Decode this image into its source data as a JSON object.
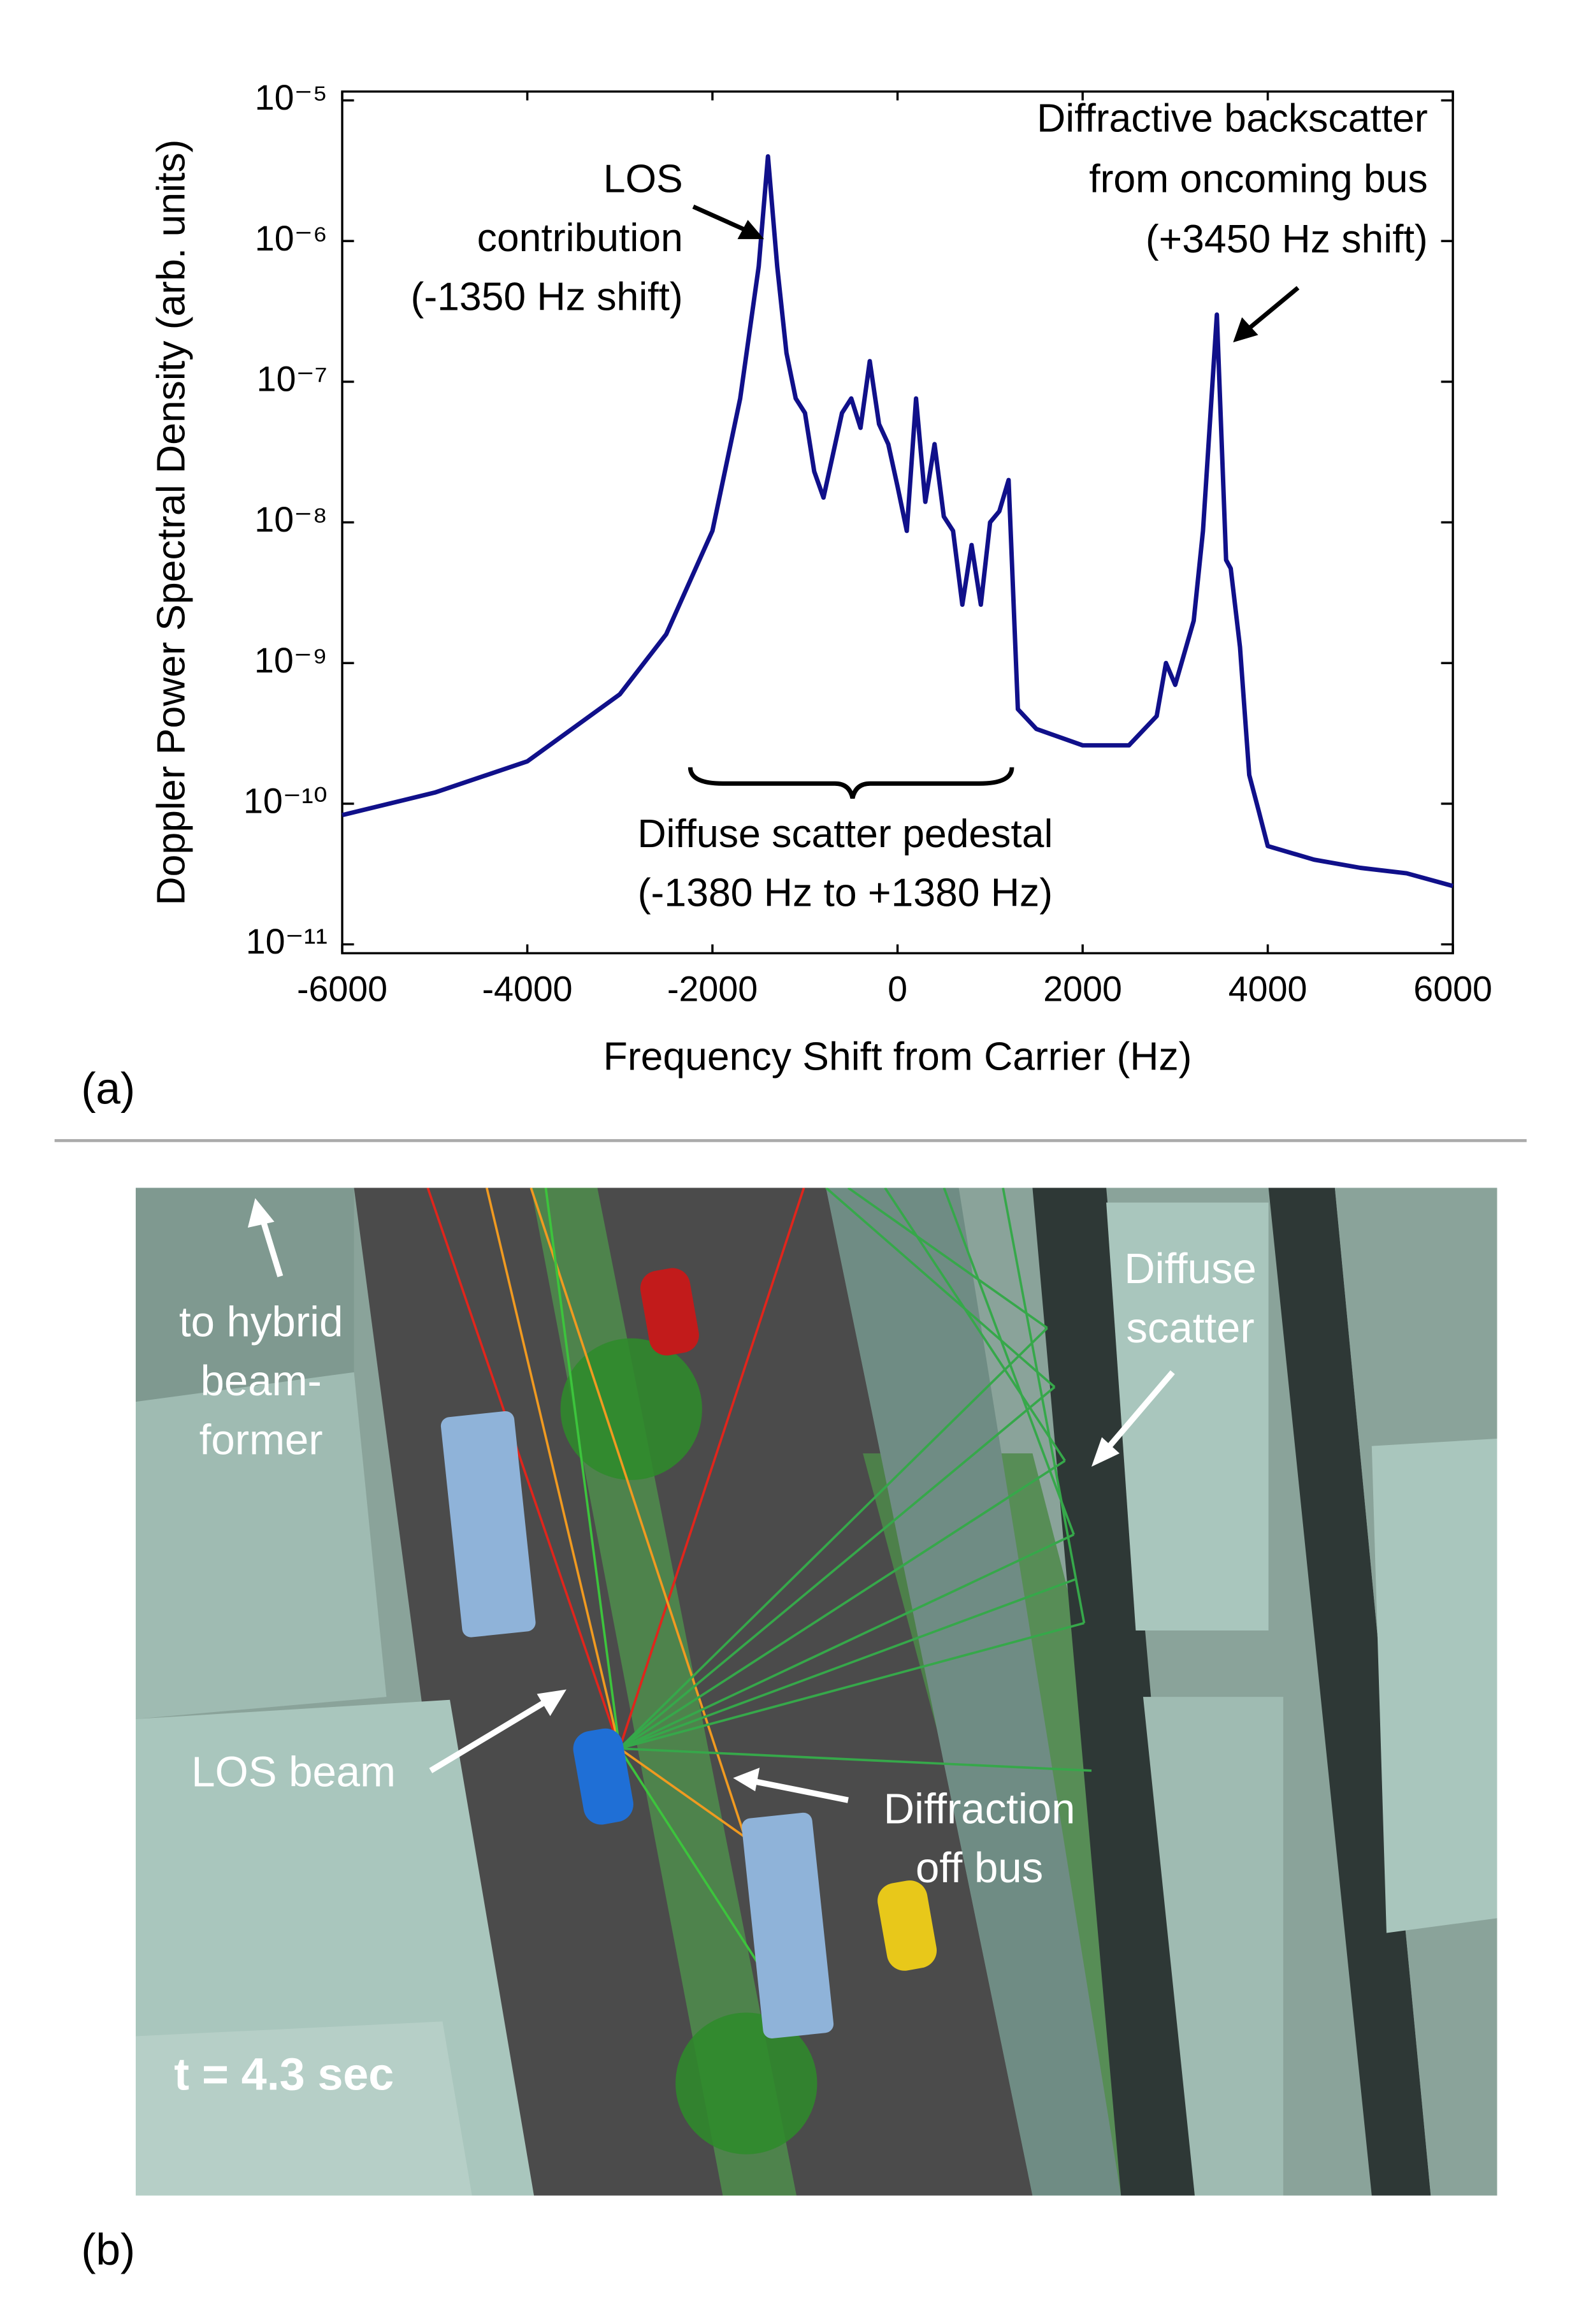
{
  "chart_data": {
    "type": "line",
    "log_y": true,
    "grid": false,
    "x_label": "Frequency Shift from Carrier (Hz)",
    "y_label": "Doppler Power Spectral Density (arb. units)",
    "xlim": [
      -6000,
      6000
    ],
    "xticks": [
      -6000,
      -4000,
      -2000,
      0,
      2000,
      4000,
      6000
    ],
    "ylim": [
      1e-11,
      1e-05
    ],
    "yticks": [
      {
        "value": 1e-11,
        "label": "10⁻¹¹"
      },
      {
        "value": 1e-10,
        "label": "10⁻¹⁰"
      },
      {
        "value": 1e-09,
        "label": "10⁻⁹"
      },
      {
        "value": 1e-08,
        "label": "10⁻⁸"
      },
      {
        "value": 1e-07,
        "label": "10⁻⁷"
      },
      {
        "value": 1e-06,
        "label": "10⁻⁶"
      },
      {
        "value": 1e-05,
        "label": "10⁻⁵"
      }
    ],
    "x": [
      -6000,
      -5000,
      -4000,
      -3000,
      -2500,
      -2000,
      -1700,
      -1500,
      -1400,
      -1300,
      -1200,
      -1100,
      -1000,
      -900,
      -800,
      -700,
      -600,
      -500,
      -400,
      -300,
      -200,
      -100,
      0,
      100,
      200,
      300,
      400,
      500,
      600,
      700,
      800,
      900,
      1000,
      1100,
      1200,
      1300,
      1500,
      2000,
      2500,
      2800,
      2900,
      3000,
      3200,
      3300,
      3450,
      3550,
      3600,
      3700,
      3800,
      3900,
      4000,
      4500,
      5000,
      5500,
      6000
    ],
    "series": [
      {
        "color": "#10108a",
        "values": [
          8.3e-11,
          1.2e-10,
          2e-10,
          6e-10,
          1.6e-09,
          8.7e-09,
          7.6e-08,
          6.6e-07,
          4e-06,
          6.6e-07,
          1.6e-07,
          7.6e-08,
          6e-08,
          2.3e-08,
          1.5e-08,
          3e-08,
          6e-08,
          7.6e-08,
          4.7e-08,
          1.4e-07,
          5e-08,
          3.6e-08,
          1.8e-08,
          8.7e-09,
          7.6e-08,
          1.4e-08,
          3.6e-08,
          1.1e-08,
          8.7e-09,
          2.6e-09,
          6.9e-09,
          2.6e-09,
          1e-08,
          1.2e-08,
          2e-08,
          4.7e-10,
          3.4e-10,
          2.6e-10,
          2.6e-10,
          4.2e-10,
          1e-09,
          7e-10,
          2e-09,
          8.7e-09,
          3e-07,
          5.4e-09,
          4.7e-09,
          1.3e-09,
          1.6e-10,
          9e-11,
          5e-11,
          4e-11,
          3.5e-11,
          3.2e-11,
          2.6e-11
        ]
      }
    ],
    "annotations": [
      {
        "lines": [
          "LOS",
          "contribution",
          "(-1350 Hz shift)"
        ]
      },
      {
        "lines": [
          "Diffractive backscatter",
          "from oncoming bus",
          "(+3450 Hz shift)"
        ]
      },
      {
        "lines": [
          "Diffuse scatter pedestal",
          "(-1380 Hz to +1380 Hz)"
        ]
      }
    ],
    "panel_label": "(a)"
  },
  "panel_b": {
    "label": "(b)",
    "callouts": [
      {
        "lines": [
          "to hybrid",
          "beam-",
          "former"
        ]
      },
      {
        "lines": [
          "Diffuse",
          "scatter"
        ]
      },
      {
        "lines": [
          "LOS beam"
        ]
      },
      {
        "lines": [
          "Diffraction",
          "off bus"
        ]
      }
    ],
    "time_label": "t = 4.3 sec"
  }
}
